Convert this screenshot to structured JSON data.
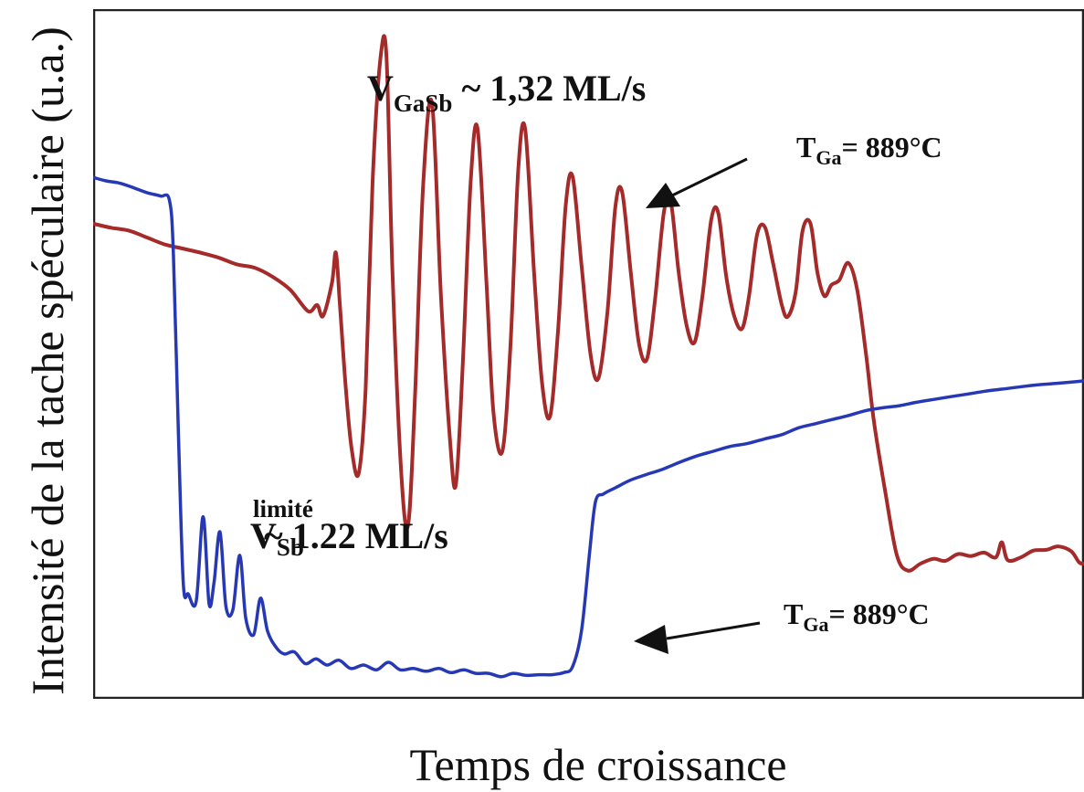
{
  "chart_data": {
    "type": "line",
    "title": "",
    "xlabel": "Temps de croissance",
    "ylabel": "Intensité de la tache spéculaire (u.a.)",
    "xlim": [
      0,
      100
    ],
    "ylim": [
      0,
      100
    ],
    "grid": false,
    "legend": "none",
    "series": [
      {
        "color": "#a52a2a",
        "points": [
          [
            0,
            68.9
          ],
          [
            1.8,
            68.3
          ],
          [
            3.6,
            67.9
          ],
          [
            5.4,
            66.9
          ],
          [
            7.2,
            65.9
          ],
          [
            9,
            65.3
          ],
          [
            10.8,
            64.7
          ],
          [
            12.6,
            64
          ],
          [
            14.5,
            63
          ],
          [
            16.3,
            62.5
          ],
          [
            18.1,
            61.2
          ],
          [
            19.9,
            59.3
          ],
          [
            21.7,
            56.2
          ],
          [
            22.6,
            57.1
          ],
          [
            23.2,
            55.5
          ],
          [
            24.1,
            60.3
          ],
          [
            24.5,
            64.7
          ],
          [
            24.9,
            57.1
          ],
          [
            25.5,
            45
          ],
          [
            26.1,
            36.1
          ],
          [
            26.8,
            32.7
          ],
          [
            27.5,
            45
          ],
          [
            28.2,
            75
          ],
          [
            29,
            92.9
          ],
          [
            29.6,
            93.1
          ],
          [
            30.2,
            62.1
          ],
          [
            31.1,
            32.7
          ],
          [
            31.8,
            25.3
          ],
          [
            32.5,
            44.4
          ],
          [
            33.3,
            74.3
          ],
          [
            34.2,
            86.4
          ],
          [
            35.1,
            58.5
          ],
          [
            36,
            37.8
          ],
          [
            36.6,
            31
          ],
          [
            37.3,
            48.4
          ],
          [
            38.1,
            75
          ],
          [
            38.8,
            82.6
          ],
          [
            39.7,
            60.3
          ],
          [
            40.4,
            41.6
          ],
          [
            41.3,
            35.9
          ],
          [
            42.1,
            50.8
          ],
          [
            42.9,
            76.7
          ],
          [
            43.6,
            82.6
          ],
          [
            44.5,
            61.8
          ],
          [
            45.3,
            45.9
          ],
          [
            46.1,
            40.9
          ],
          [
            46.9,
            53.1
          ],
          [
            47.7,
            71.6
          ],
          [
            48.4,
            75.7
          ],
          [
            49.3,
            62.7
          ],
          [
            50.2,
            49.9
          ],
          [
            51,
            46.5
          ],
          [
            51.9,
            56
          ],
          [
            52.7,
            71.3
          ],
          [
            53.4,
            73.4
          ],
          [
            54.3,
            61.2
          ],
          [
            55.1,
            51.4
          ],
          [
            55.9,
            49.3
          ],
          [
            56.7,
            57.8
          ],
          [
            57.6,
            70.6
          ],
          [
            58.3,
            72
          ],
          [
            59.1,
            61.8
          ],
          [
            59.9,
            54.1
          ],
          [
            60.7,
            51.7
          ],
          [
            61.5,
            58.5
          ],
          [
            62.4,
            69.6
          ],
          [
            63.1,
            70.4
          ],
          [
            63.9,
            61.2
          ],
          [
            64.7,
            55.5
          ],
          [
            65.5,
            53.7
          ],
          [
            66.2,
            58.5
          ],
          [
            67,
            67.3
          ],
          [
            67.8,
            68.4
          ],
          [
            68.6,
            63.3
          ],
          [
            69.5,
            57.1
          ],
          [
            70.1,
            55.4
          ],
          [
            70.9,
            59
          ],
          [
            71.6,
            67.9
          ],
          [
            72.4,
            68.9
          ],
          [
            73.1,
            61.8
          ],
          [
            73.8,
            58.4
          ],
          [
            74.5,
            60
          ],
          [
            75.3,
            60.7
          ],
          [
            76.2,
            63.2
          ],
          [
            77.1,
            59.4
          ],
          [
            78,
            50
          ],
          [
            78.8,
            40.2
          ],
          [
            79.9,
            30.4
          ],
          [
            81.1,
            20.9
          ],
          [
            82.2,
            18.6
          ],
          [
            83.5,
            19.6
          ],
          [
            84.8,
            20.3
          ],
          [
            86,
            20
          ],
          [
            87.3,
            21
          ],
          [
            88.6,
            20.7
          ],
          [
            89.9,
            21.2
          ],
          [
            91.1,
            20.5
          ],
          [
            91.7,
            22.7
          ],
          [
            92.3,
            20.1
          ],
          [
            93.6,
            20.5
          ],
          [
            94.9,
            21.5
          ],
          [
            96.2,
            21.6
          ],
          [
            97.4,
            22.1
          ],
          [
            98.7,
            21.4
          ],
          [
            99.5,
            19.8
          ],
          [
            100,
            19.6
          ]
        ]
      },
      {
        "color": "#2638b4",
        "points": [
          [
            0,
            75.6
          ],
          [
            1.3,
            75.1
          ],
          [
            2.6,
            74.8
          ],
          [
            3.9,
            74.2
          ],
          [
            5.4,
            73.4
          ],
          [
            6.8,
            72.9
          ],
          [
            7.7,
            72.3
          ],
          [
            8.1,
            64.4
          ],
          [
            8.6,
            38.8
          ],
          [
            9.1,
            16.8
          ],
          [
            9.6,
            15.2
          ],
          [
            10.4,
            14.1
          ],
          [
            11.1,
            26.4
          ],
          [
            11.7,
            13.8
          ],
          [
            12.2,
            16.9
          ],
          [
            12.8,
            24.2
          ],
          [
            13.4,
            13.4
          ],
          [
            14.1,
            12.9
          ],
          [
            14.8,
            20.8
          ],
          [
            15.4,
            11.7
          ],
          [
            16.2,
            9.3
          ],
          [
            16.9,
            14.6
          ],
          [
            17.6,
            9.8
          ],
          [
            18.5,
            7.4
          ],
          [
            19.3,
            6.5
          ],
          [
            20.3,
            6.8
          ],
          [
            21.4,
            5.1
          ],
          [
            22.5,
            5.8
          ],
          [
            23.6,
            4.9
          ],
          [
            24.8,
            5.6
          ],
          [
            26,
            4.4
          ],
          [
            27.3,
            4.9
          ],
          [
            28.6,
            4.2
          ],
          [
            29.8,
            5.3
          ],
          [
            31,
            4.2
          ],
          [
            32.3,
            4.4
          ],
          [
            33.6,
            4
          ],
          [
            34.9,
            4.4
          ],
          [
            36.1,
            3.8
          ],
          [
            37.4,
            4.2
          ],
          [
            38.6,
            3.7
          ],
          [
            39.9,
            3.7
          ],
          [
            41.2,
            3.2
          ],
          [
            42.4,
            3.7
          ],
          [
            43.7,
            3.4
          ],
          [
            45,
            3.5
          ],
          [
            46.3,
            3.5
          ],
          [
            47.5,
            3.8
          ],
          [
            48.4,
            4.7
          ],
          [
            49.3,
            10
          ],
          [
            50.1,
            21.2
          ],
          [
            50.7,
            28.6
          ],
          [
            51.5,
            29.7
          ],
          [
            52.7,
            30.6
          ],
          [
            54.2,
            31.7
          ],
          [
            55.8,
            32.5
          ],
          [
            57.5,
            33.3
          ],
          [
            59.2,
            34.3
          ],
          [
            60.9,
            35.2
          ],
          [
            62.6,
            35.9
          ],
          [
            64.3,
            36.6
          ],
          [
            66,
            37
          ],
          [
            67.8,
            37.7
          ],
          [
            69.5,
            38.3
          ],
          [
            71.2,
            39.3
          ],
          [
            72.9,
            39.9
          ],
          [
            74.6,
            40.5
          ],
          [
            76.3,
            41.1
          ],
          [
            78,
            41.8
          ],
          [
            79.7,
            42.2
          ],
          [
            81.4,
            42.5
          ],
          [
            83.1,
            43
          ],
          [
            84.8,
            43.4
          ],
          [
            86.5,
            43.8
          ],
          [
            88.3,
            44.2
          ],
          [
            90,
            44.6
          ],
          [
            91.7,
            44.9
          ],
          [
            93.4,
            45.2
          ],
          [
            95.1,
            45.5
          ],
          [
            96.8,
            45.7
          ],
          [
            98.5,
            45.9
          ],
          [
            100,
            46.1
          ]
        ]
      }
    ],
    "annotations": [
      {
        "main": "V",
        "sub": "GaSb",
        "text": " ~ 1,32 ML/s"
      },
      {
        "main": "V",
        "sub": "Sb",
        "sup": "limité",
        "text": "~ 1.22 ML/s"
      },
      {
        "main": "T",
        "sub": "Ga",
        "text": "= 889°C"
      },
      {
        "main": "T",
        "sub": "Ga",
        "text": "= 889°C"
      }
    ]
  }
}
